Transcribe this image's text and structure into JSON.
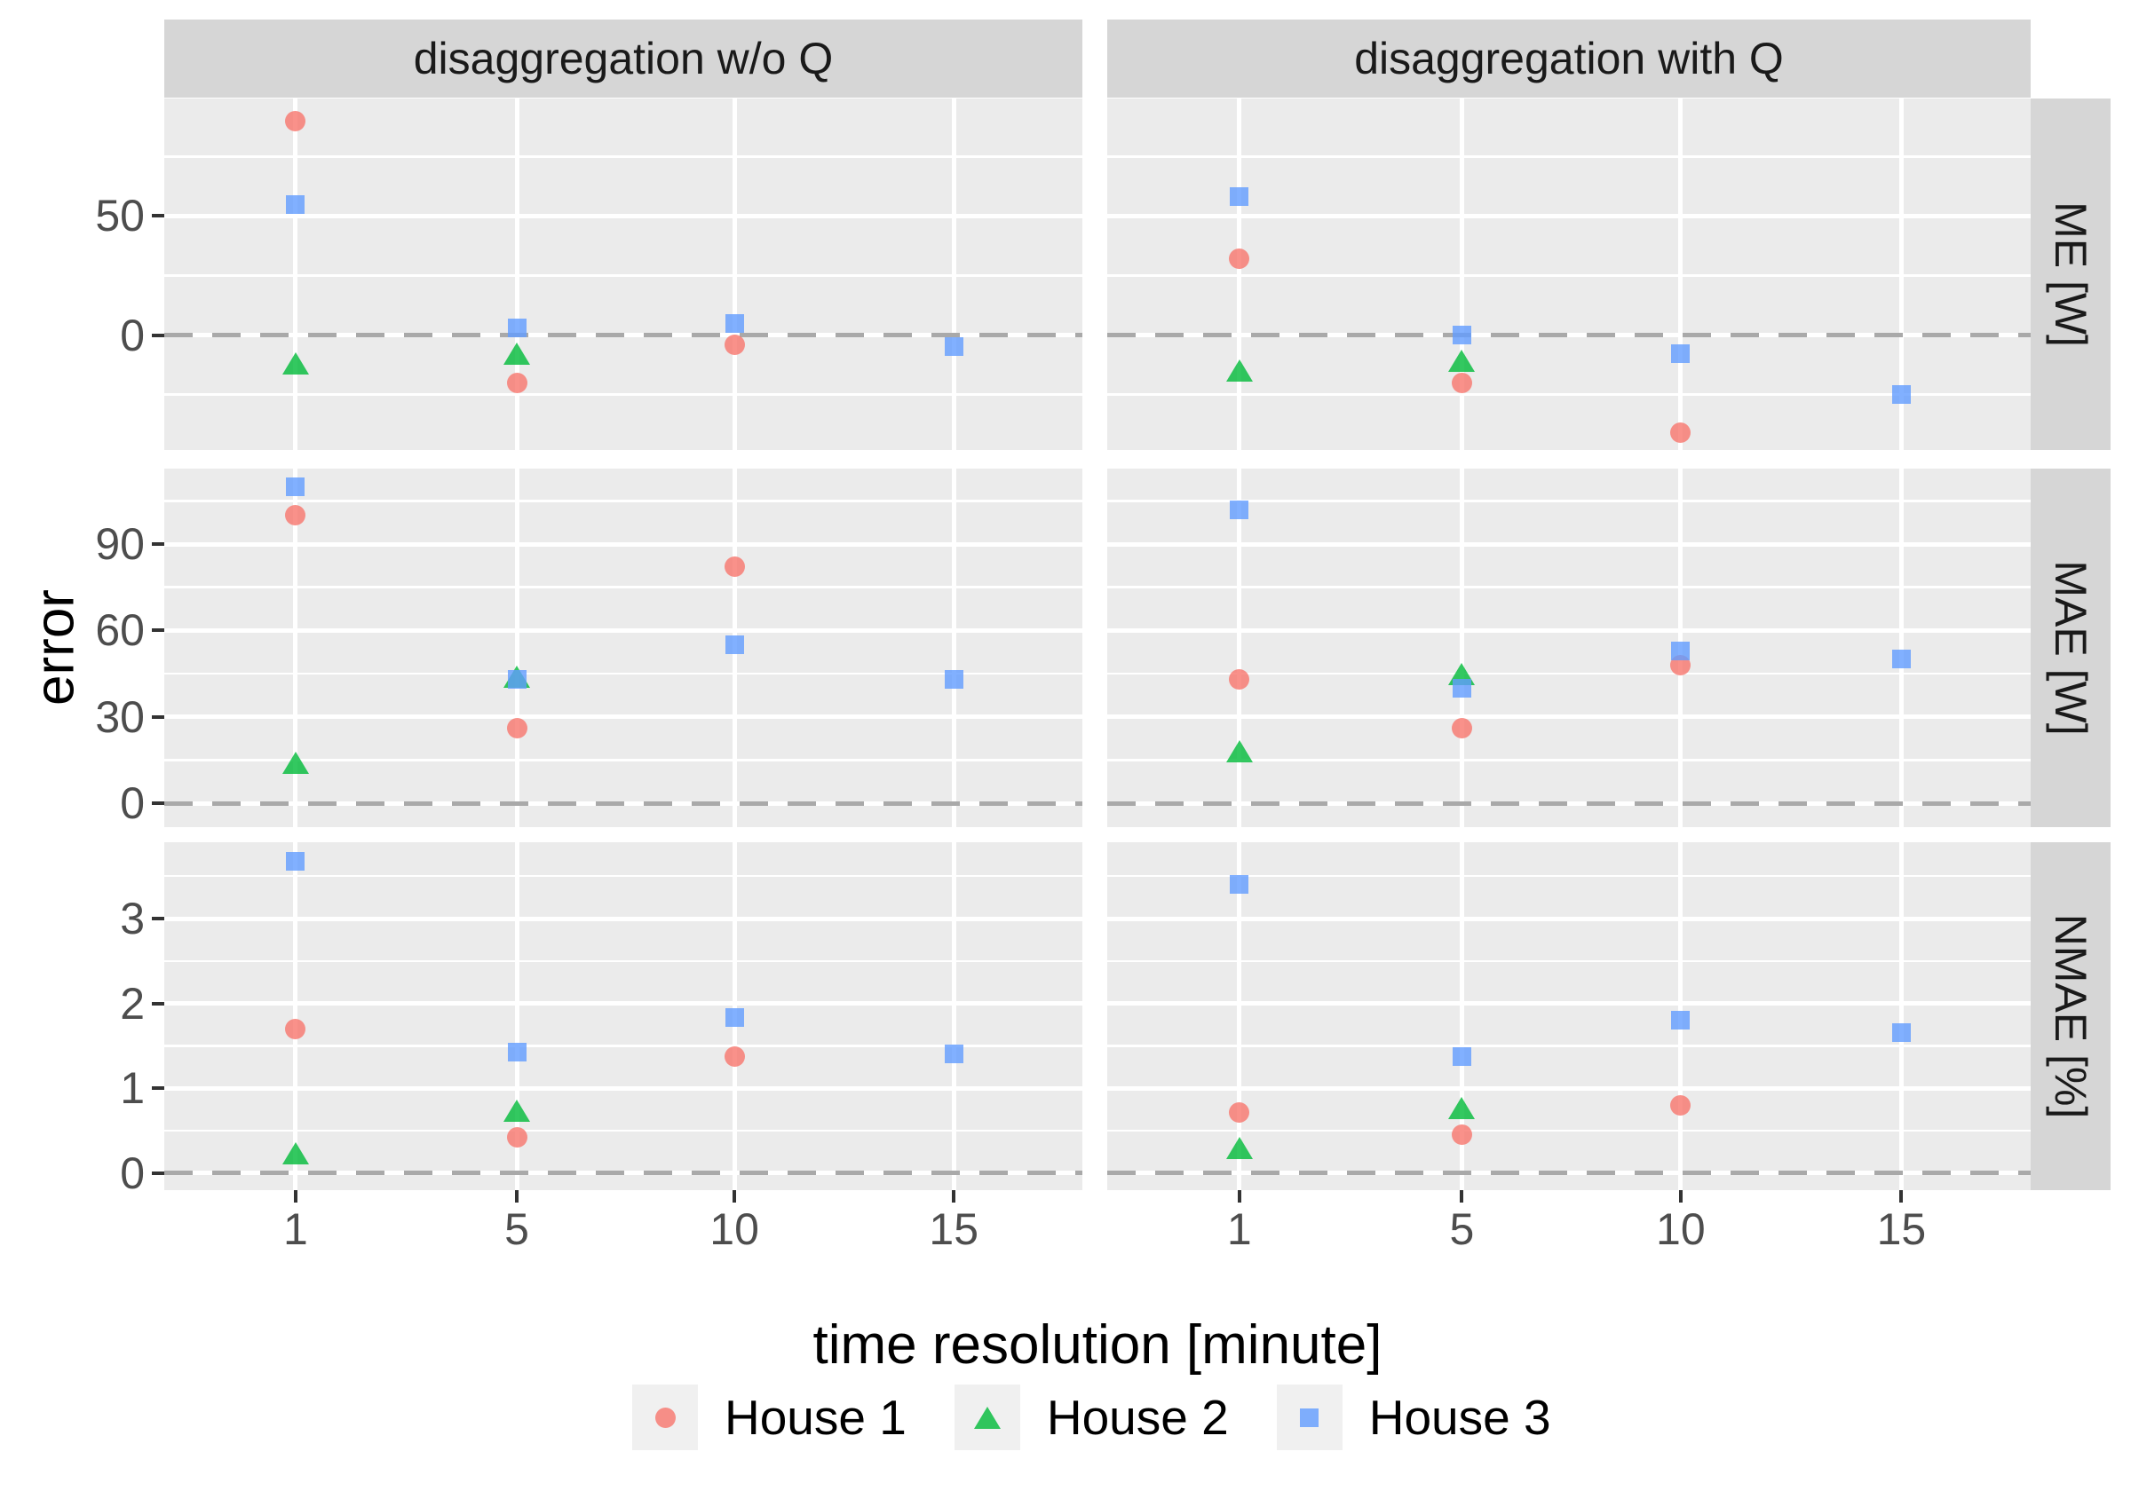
{
  "figure": {
    "xlabel": "time resolution [minute]",
    "ylabel": "error",
    "col_facets": [
      "disaggregation w/o Q",
      "disaggregation with Q"
    ],
    "row_facets": [
      {
        "label": "ME [W]",
        "ylim": [
          -48.3,
          99.4
        ],
        "ticks": [
          0,
          50
        ],
        "minor_ticks": [
          -25,
          25,
          75
        ],
        "tick_labels": [
          "0",
          "50"
        ]
      },
      {
        "label": "MAE [W]",
        "ylim": [
          -8.3,
          116.2
        ],
        "ticks": [
          0,
          30,
          60,
          90
        ],
        "minor_ticks": [
          15,
          45,
          75,
          105
        ],
        "tick_labels": [
          "0",
          "30",
          "60",
          "90"
        ]
      },
      {
        "label": "NMAE [%]",
        "ylim": [
          -0.2,
          3.9
        ],
        "ticks": [
          0,
          1,
          2,
          3
        ],
        "minor_ticks": [
          0.5,
          1.5,
          2.5,
          3.5
        ],
        "tick_labels": [
          "0",
          "1",
          "2",
          "3"
        ]
      }
    ],
    "x_ticks": [
      1,
      5,
      10,
      15
    ],
    "x_tick_labels": [
      "1",
      "5",
      "10",
      "15"
    ],
    "colors": {
      "house1": "#F8766D",
      "house2": "#00BA38",
      "house3": "#619CFF",
      "panel_bg": "#EBEBEB",
      "strip_bg": "#D6D6D6",
      "zero_line": "#A9A9A9",
      "tick_text": "#4D4D4D"
    },
    "marker_alpha": 0.8,
    "legend": [
      {
        "label": "House 1",
        "shape": "circle",
        "color": "#F8766D"
      },
      {
        "label": "House 2",
        "shape": "triangle",
        "color": "#00BA38"
      },
      {
        "label": "House 3",
        "shape": "square",
        "color": "#619CFF"
      }
    ]
  },
  "chart_data": [
    {
      "type": "scatter",
      "facet_row": "ME [W]",
      "facet_col": "disaggregation w/o Q",
      "series": [
        {
          "name": "House 1",
          "points": [
            [
              1,
              90
            ],
            [
              5,
              -20
            ],
            [
              10,
              -4
            ]
          ]
        },
        {
          "name": "House 2",
          "points": [
            [
              1,
              -12
            ],
            [
              5,
              -8
            ]
          ]
        },
        {
          "name": "House 3",
          "points": [
            [
              1,
              55
            ],
            [
              5,
              3
            ],
            [
              10,
              5
            ],
            [
              15,
              -5
            ]
          ]
        }
      ]
    },
    {
      "type": "scatter",
      "facet_row": "ME [W]",
      "facet_col": "disaggregation with Q",
      "series": [
        {
          "name": "House 1",
          "points": [
            [
              1,
              32
            ],
            [
              5,
              -20
            ],
            [
              10,
              -41
            ]
          ]
        },
        {
          "name": "House 2",
          "points": [
            [
              1,
              -15
            ],
            [
              5,
              -11
            ]
          ]
        },
        {
          "name": "House 3",
          "points": [
            [
              1,
              58
            ],
            [
              5,
              0
            ],
            [
              10,
              -8
            ],
            [
              15,
              -25
            ]
          ]
        }
      ]
    },
    {
      "type": "scatter",
      "facet_row": "MAE [W]",
      "facet_col": "disaggregation w/o Q",
      "series": [
        {
          "name": "House 1",
          "points": [
            [
              1,
              100
            ],
            [
              5,
              26
            ],
            [
              10,
              82
            ]
          ]
        },
        {
          "name": "House 2",
          "points": [
            [
              1,
              14
            ],
            [
              5,
              44
            ]
          ]
        },
        {
          "name": "House 3",
          "points": [
            [
              1,
              110
            ],
            [
              5,
              43
            ],
            [
              10,
              55
            ],
            [
              15,
              43
            ]
          ]
        }
      ]
    },
    {
      "type": "scatter",
      "facet_row": "MAE [W]",
      "facet_col": "disaggregation with Q",
      "series": [
        {
          "name": "House 1",
          "points": [
            [
              1,
              43
            ],
            [
              5,
              26
            ],
            [
              10,
              48
            ]
          ]
        },
        {
          "name": "House 2",
          "points": [
            [
              1,
              18
            ],
            [
              5,
              45
            ]
          ]
        },
        {
          "name": "House 3",
          "points": [
            [
              1,
              102
            ],
            [
              5,
              40
            ],
            [
              10,
              53
            ],
            [
              15,
              50
            ]
          ]
        }
      ]
    },
    {
      "type": "scatter",
      "facet_row": "NMAE [%]",
      "facet_col": "disaggregation w/o Q",
      "series": [
        {
          "name": "House 1",
          "points": [
            [
              1,
              1.7
            ],
            [
              5,
              0.42
            ],
            [
              10,
              1.37
            ]
          ]
        },
        {
          "name": "House 2",
          "points": [
            [
              1,
              0.23
            ],
            [
              5,
              0.74
            ]
          ]
        },
        {
          "name": "House 3",
          "points": [
            [
              1,
              3.67
            ],
            [
              5,
              1.43
            ],
            [
              10,
              1.83
            ],
            [
              15,
              1.41
            ]
          ]
        }
      ]
    },
    {
      "type": "scatter",
      "facet_row": "NMAE [%]",
      "facet_col": "disaggregation with Q",
      "series": [
        {
          "name": "House 1",
          "points": [
            [
              1,
              0.72
            ],
            [
              5,
              0.45
            ],
            [
              10,
              0.8
            ]
          ]
        },
        {
          "name": "House 2",
          "points": [
            [
              1,
              0.3
            ],
            [
              5,
              0.77
            ]
          ]
        },
        {
          "name": "House 3",
          "points": [
            [
              1,
              3.4
            ],
            [
              5,
              1.37
            ],
            [
              10,
              1.8
            ],
            [
              15,
              1.66
            ]
          ]
        }
      ]
    }
  ]
}
